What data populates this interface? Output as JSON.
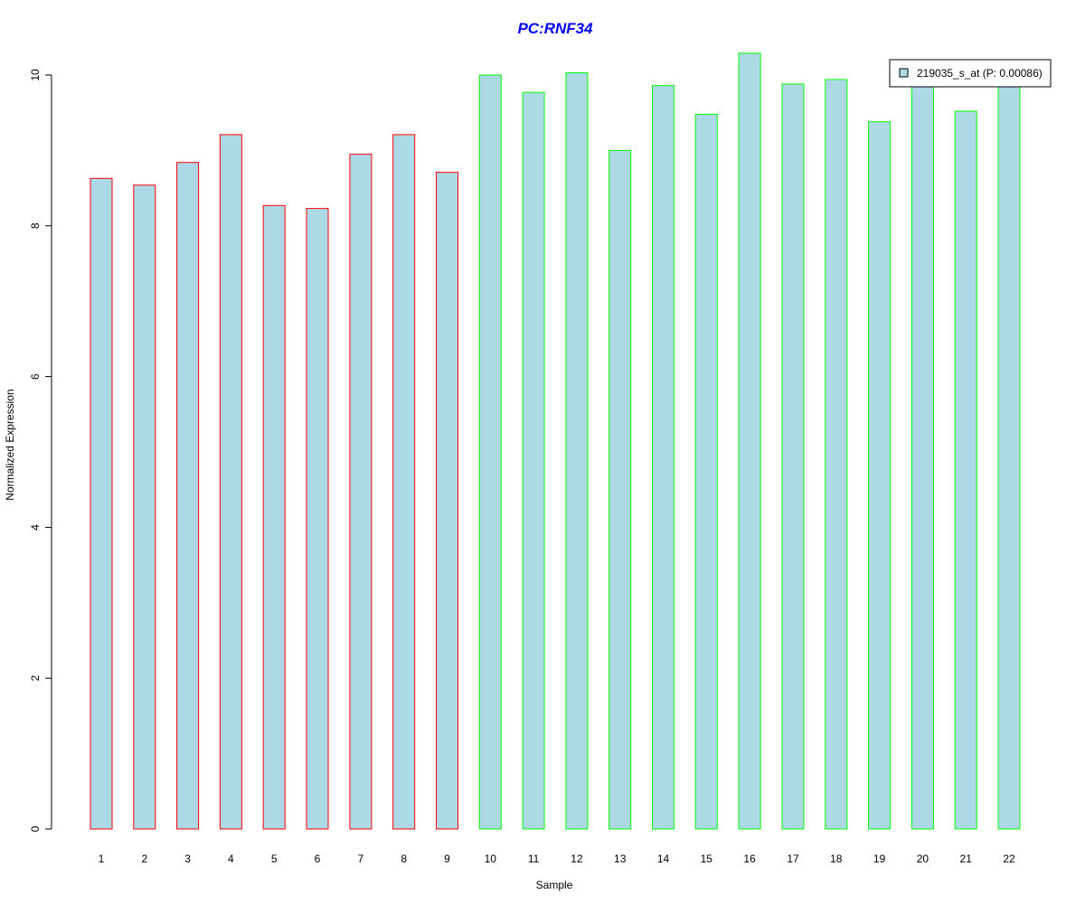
{
  "chart_data": {
    "type": "bar",
    "title": "PC:RNF34",
    "xlabel": "Sample",
    "ylabel": "Normalized Expression",
    "categories": [
      "1",
      "2",
      "3",
      "4",
      "5",
      "6",
      "7",
      "8",
      "9",
      "10",
      "11",
      "12",
      "13",
      "14",
      "15",
      "16",
      "17",
      "18",
      "19",
      "20",
      "21",
      "22"
    ],
    "series": [
      {
        "name": "219035_s_at (P: 0.00086)",
        "values": [
          8.63,
          8.54,
          8.84,
          9.21,
          8.27,
          8.23,
          8.95,
          9.21,
          8.71,
          10.0,
          9.77,
          10.03,
          9.0,
          9.86,
          9.48,
          10.29,
          9.88,
          9.94,
          9.38,
          9.93,
          9.52,
          9.93
        ]
      }
    ],
    "groups": [
      {
        "samples": [
          1,
          2,
          3,
          4,
          5,
          6,
          7,
          8,
          9
        ],
        "border_color": "#ff0000"
      },
      {
        "samples": [
          10,
          11,
          12,
          13,
          14,
          15,
          16,
          17,
          18,
          19,
          20,
          21,
          22
        ],
        "border_color": "#00ff00"
      }
    ],
    "bar_fill": "#add8e6",
    "title_color": "#0000ff",
    "yticks": [
      0,
      2,
      4,
      6,
      8,
      10
    ],
    "ylim": [
      0,
      10.4
    ],
    "legend_position": "top-right",
    "grid": false
  }
}
